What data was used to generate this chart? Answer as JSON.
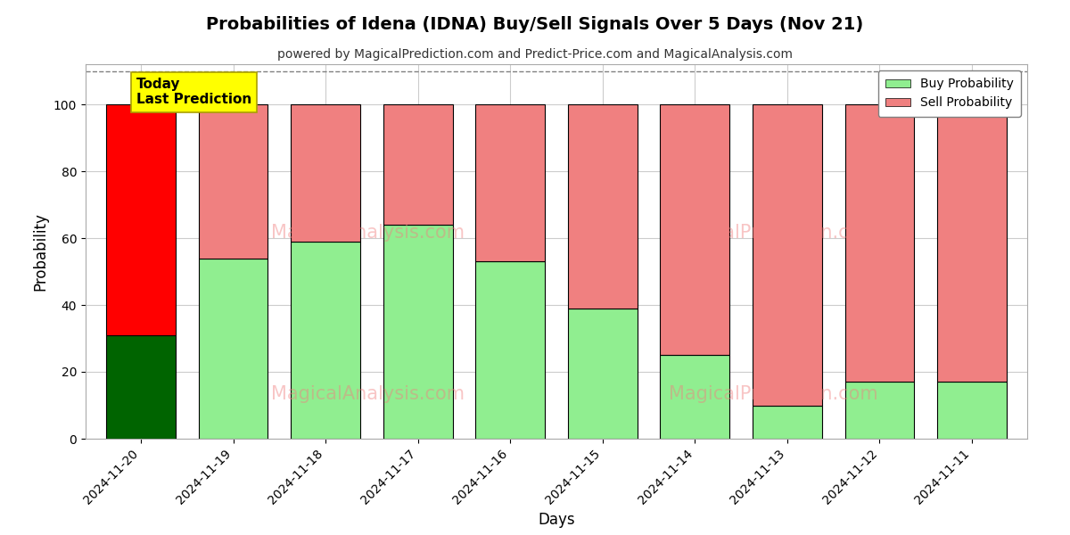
{
  "title": "Probabilities of Idena (IDNA) Buy/Sell Signals Over 5 Days (Nov 21)",
  "subtitle": "powered by MagicalPrediction.com and Predict-Price.com and MagicalAnalysis.com",
  "xlabel": "Days",
  "ylabel": "Probability",
  "dates": [
    "2024-11-20",
    "2024-11-19",
    "2024-11-18",
    "2024-11-17",
    "2024-11-16",
    "2024-11-15",
    "2024-11-14",
    "2024-11-13",
    "2024-11-12",
    "2024-11-11"
  ],
  "buy_values": [
    31,
    54,
    59,
    64,
    53,
    39,
    25,
    10,
    17,
    17
  ],
  "sell_values": [
    69,
    46,
    41,
    36,
    47,
    61,
    75,
    90,
    83,
    83
  ],
  "today_buy_color": "#006400",
  "today_sell_color": "#FF0000",
  "buy_color": "#90EE90",
  "sell_color": "#F08080",
  "buy_legend_color": "#90EE90",
  "sell_legend_color": "#F08080",
  "bar_edge_color": "#000000",
  "ylim": [
    0,
    112
  ],
  "yticks": [
    0,
    20,
    40,
    60,
    80,
    100
  ],
  "dashed_line_y": 110,
  "today_label_bg": "#FFFF00",
  "today_label_text": "Today\nLast Prediction",
  "legend_buy": "Buy Probability",
  "legend_sell": "Sell Probability",
  "background_color": "#ffffff",
  "grid_color": "#cccccc"
}
